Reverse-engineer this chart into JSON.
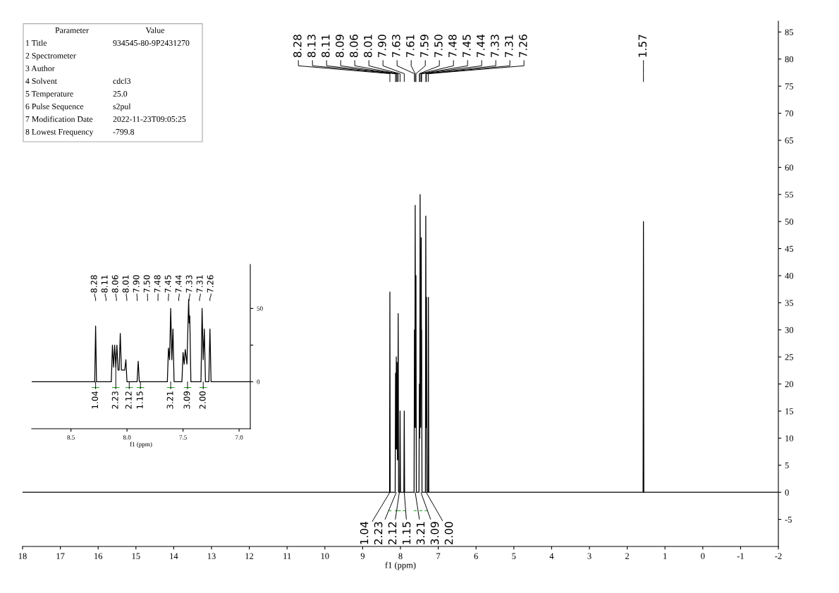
{
  "chart_data": [
    {
      "type": "line",
      "xlabel": "f1 (ppm)",
      "xlim": [
        18,
        -2
      ],
      "xticks": [
        18,
        17,
        16,
        15,
        14,
        13,
        12,
        11,
        10,
        9,
        8,
        7,
        6,
        5,
        4,
        3,
        2,
        1,
        0,
        -1,
        -2
      ],
      "ylim": [
        -10,
        87
      ],
      "yticks": [
        -5,
        0,
        5,
        10,
        15,
        20,
        25,
        30,
        35,
        40,
        45,
        50,
        55,
        60,
        65,
        70,
        75,
        80,
        85
      ],
      "grid": false,
      "legend": false,
      "series": [
        {
          "color": "#000000",
          "x": [
            18,
            8.3,
            8.288,
            8.28,
            8.272,
            8.14,
            8.13,
            8.12,
            8.11,
            8.1,
            8.09,
            8.08,
            8.07,
            8.06,
            8.05,
            8.02,
            8.01,
            8.0,
            7.91,
            7.9,
            7.89,
            7.64,
            7.63,
            7.62,
            7.61,
            7.6,
            7.59,
            7.58,
            7.51,
            7.5,
            7.49,
            7.48,
            7.465,
            7.45,
            7.445,
            7.44,
            7.43,
            7.34,
            7.33,
            7.32,
            7.31,
            7.3,
            7.27,
            7.26,
            7.25,
            1.58,
            1.57,
            1.56,
            -2
          ],
          "values": [
            0,
            0,
            0,
            37,
            0,
            0,
            22,
            8,
            25,
            8,
            24,
            6,
            6,
            33,
            0,
            0,
            15,
            0,
            0,
            15,
            0,
            0,
            30,
            12,
            53,
            12,
            40,
            0,
            0,
            20,
            10,
            55,
            12,
            47,
            25,
            30,
            0,
            0,
            51,
            12,
            36,
            0,
            0,
            36,
            0,
            0,
            50,
            0,
            0
          ]
        }
      ],
      "annotations": [
        "8.28",
        "8.13",
        "8.11",
        "8.09",
        "8.06",
        "8.01",
        "7.90",
        "7.63",
        "7.61",
        "7.59",
        "7.50",
        "7.48",
        "7.45",
        "7.44",
        "7.33",
        "7.31",
        "7.26",
        "1.57",
        {
          "text": "1.04",
          "x": 8.28,
          "y": 0
        },
        {
          "text": "2.23",
          "x": 8.11,
          "y": 0
        },
        {
          "text": "2.12",
          "x": 8.03,
          "y": 0
        },
        {
          "text": "1.15",
          "x": 7.9,
          "y": 0
        },
        {
          "text": "3.21",
          "x": 7.61,
          "y": 0
        },
        {
          "text": "3.09",
          "x": 7.46,
          "y": 0
        },
        {
          "text": "2.00",
          "x": 7.32,
          "y": 0
        }
      ]
    },
    {
      "type": "line",
      "xlabel": "f1 (ppm)",
      "xlim": [
        8.85,
        6.9
      ],
      "xticks": [
        8.5,
        {
          "value": 8,
          "label": "8.0"
        },
        7.5,
        {
          "value": 7,
          "label": "7.0"
        }
      ],
      "ylim": [
        -32,
        80
      ],
      "yticks": [
        0,
        {
          "value": 25,
          "label": null
        },
        50
      ],
      "grid": false,
      "legend": false,
      "series": [
        {
          "color": "#000000",
          "x": [
            8.85,
            8.3,
            8.288,
            8.28,
            8.272,
            8.14,
            8.13,
            8.12,
            8.11,
            8.1,
            8.09,
            8.08,
            8.07,
            8.06,
            8.05,
            8.02,
            8.01,
            8.0,
            7.91,
            7.9,
            7.89,
            7.64,
            7.63,
            7.62,
            7.61,
            7.6,
            7.59,
            7.58,
            7.51,
            7.5,
            7.49,
            7.48,
            7.465,
            7.45,
            7.445,
            7.44,
            7.43,
            7.34,
            7.33,
            7.32,
            7.31,
            7.3,
            7.27,
            7.26,
            7.25,
            6.9
          ],
          "values": [
            0,
            0,
            0,
            38,
            0,
            0,
            25,
            10,
            25,
            10,
            25,
            8,
            8,
            33,
            8,
            8,
            15,
            0,
            0,
            14,
            0,
            0,
            23,
            15,
            50,
            15,
            36,
            0,
            0,
            20,
            12,
            22,
            12,
            56,
            40,
            45,
            0,
            0,
            50,
            15,
            36,
            0,
            0,
            36,
            0,
            0
          ]
        }
      ],
      "annotations": [
        "8.28",
        "8.11",
        "8.06",
        "8.01",
        "7.90",
        "7.50",
        "7.48",
        "7.45",
        "7.44",
        "7.33",
        "7.31",
        "7.26",
        {
          "text": "1.04",
          "x": 8.28,
          "y": 0
        },
        {
          "text": "2.23",
          "x": 8.1,
          "y": 10
        },
        {
          "text": "2.12",
          "x": 7.98,
          "y": 0
        },
        {
          "text": "1.15",
          "x": 7.88,
          "y": 0
        },
        {
          "text": "3.21",
          "x": 7.61,
          "y": 0
        },
        {
          "text": "3.09",
          "x": 7.46,
          "y": 0
        },
        {
          "text": "2.00",
          "x": 7.32,
          "y": 0
        }
      ]
    },
    {
      "type": "other",
      "annotations": [
        "Parameter\tValue",
        "1 Title\t934545-80-9P2431270",
        "2 Spectrometer",
        "3 Author",
        "4 Solvent\tcdcl3",
        "5 Temperature\t25.0",
        "6 Pulse Sequence\ts2pul",
        "7 Modification Date\t2022-11-23T09:05:25",
        "8 Lowest Frequency\t-799.8"
      ]
    }
  ]
}
